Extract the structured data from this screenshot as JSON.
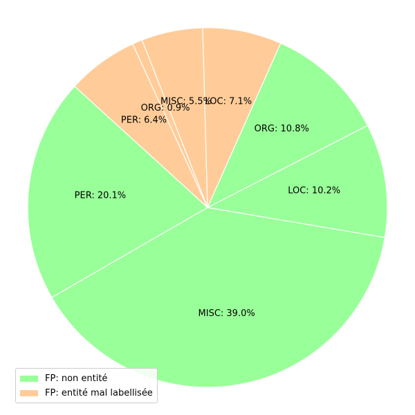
{
  "chart_data": {
    "type": "pie",
    "title": "",
    "slices": [
      {
        "label": "MISC",
        "value": 39.0,
        "group": 0
      },
      {
        "label": "LOC",
        "value": 10.2,
        "group": 0
      },
      {
        "label": "ORG",
        "value": 10.8,
        "group": 0
      },
      {
        "label": "LOC",
        "value": 7.1,
        "group": 1
      },
      {
        "label": "MISC",
        "value": 5.5,
        "group": 1
      },
      {
        "label": "ORG",
        "value": 0.9,
        "group": 1
      },
      {
        "label": "PER",
        "value": 6.4,
        "group": 1
      },
      {
        "label": "PER",
        "value": 20.1,
        "group": 0
      }
    ],
    "groups": [
      {
        "name": "FP: non entité",
        "color": "#99ff99"
      },
      {
        "name": "FP: entité mal labellisée",
        "color": "#ffcc99"
      }
    ],
    "legend_position": "lower-left",
    "slice_edge_color": "#ffffff"
  }
}
